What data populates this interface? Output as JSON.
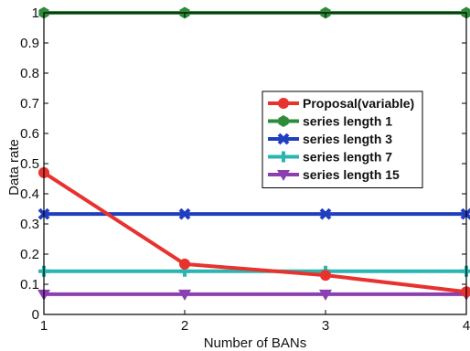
{
  "chart_data": {
    "type": "line",
    "xlabel": "Number of BANs",
    "ylabel": "Data rate",
    "x": [
      1,
      2,
      3,
      4
    ],
    "xlim": [
      1,
      4
    ],
    "ylim": [
      0,
      1
    ],
    "xticks": [
      "1",
      "2",
      "3",
      "4"
    ],
    "yticks": [
      "0",
      "0.1",
      "0.2",
      "0.3",
      "0.4",
      "0.5",
      "0.6",
      "0.7",
      "0.8",
      "0.9",
      "1"
    ],
    "grid": false,
    "legend_position": "right",
    "series": [
      {
        "name": "Proposal(variable)",
        "values": [
          0.47,
          0.167,
          0.13,
          0.075
        ],
        "color": "#e8322e",
        "marker": "circle"
      },
      {
        "name": "series length 1",
        "values": [
          1,
          1,
          1,
          1
        ],
        "color": "#2e8b3a",
        "marker": "hexagon"
      },
      {
        "name": "series length 3",
        "values": [
          0.333,
          0.333,
          0.333,
          0.333
        ],
        "color": "#1f3fbf",
        "marker": "x"
      },
      {
        "name": "series length 7",
        "values": [
          0.143,
          0.143,
          0.143,
          0.143
        ],
        "color": "#2ab5b0",
        "marker": "plus"
      },
      {
        "name": "series length 15",
        "values": [
          0.067,
          0.067,
          0.067,
          0.067
        ],
        "color": "#8b3fb0",
        "marker": "triangle-down"
      }
    ]
  }
}
